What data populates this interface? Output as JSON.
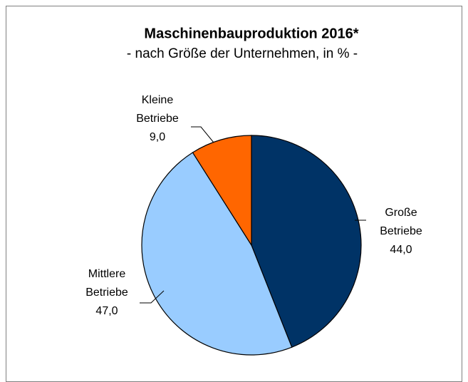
{
  "chart_data": {
    "type": "pie",
    "title": "Maschinenbauproduktion 2016*",
    "subtitle": "- nach Größe der Unternehmen, in % -",
    "categories": [
      "Große Betriebe",
      "Mittlere Betriebe",
      "Kleine Betriebe"
    ],
    "values": [
      44.0,
      47.0,
      9.0
    ],
    "value_labels": [
      "44,0",
      "47,0",
      "9,0"
    ],
    "colors": [
      "#003366",
      "#99ccff",
      "#ff6600"
    ]
  }
}
